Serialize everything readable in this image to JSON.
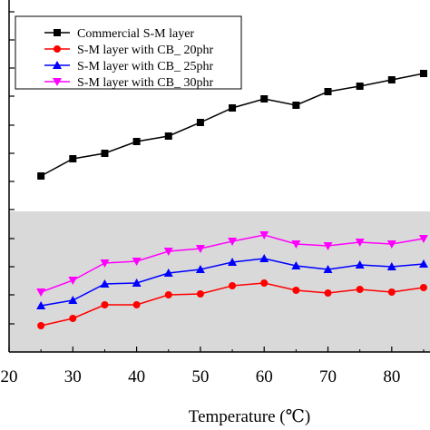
{
  "chart_data": {
    "type": "line",
    "xlabel": "Temperature (℃)",
    "ylabel": "",
    "title": "",
    "xlim": [
      20,
      86
    ],
    "x_ticks": [
      20,
      30,
      40,
      50,
      60,
      70,
      80
    ],
    "x": [
      25,
      30,
      35,
      40,
      45,
      50,
      55,
      60,
      65,
      70,
      75,
      80,
      85
    ],
    "shaded_band": {
      "color": "#d9d9d9"
    },
    "legend": {
      "position": "top-left"
    },
    "series": [
      {
        "name": "Commercial S-M layer",
        "color": "#000000",
        "marker": "square",
        "values": [
          194,
          175,
          169,
          156,
          150,
          135,
          119,
          109,
          116,
          101,
          95,
          88,
          81
        ]
      },
      {
        "name": "S-M layer with CB_ 20phr",
        "color": "#ff0000",
        "marker": "circle",
        "values": [
          359,
          351,
          336,
          336,
          325,
          324,
          315,
          312,
          320,
          323,
          319,
          322,
          317
        ]
      },
      {
        "name": "S-M layer with CB_ 25phr",
        "color": "#0000ff",
        "marker": "triangle-up",
        "values": [
          337,
          331,
          313,
          312,
          301,
          297,
          289,
          285,
          293,
          297,
          292,
          294,
          291
        ]
      },
      {
        "name": "S-M layer with CB_ 30phr",
        "color": "#ff00ff",
        "marker": "triangle-down",
        "values": [
          322,
          309,
          290,
          288,
          277,
          274,
          266,
          259,
          269,
          271,
          267,
          269,
          263
        ]
      }
    ]
  }
}
